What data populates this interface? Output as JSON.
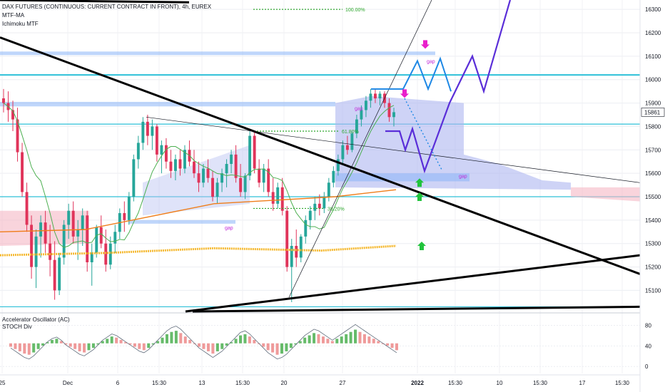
{
  "chart_data": [
    {
      "type": "candlestick",
      "title": "DAX FUTURES (CONTINUOUS: CURRENT CONTRACT IN FRONT), 4h, EUREX",
      "indicators": [
        "MTF-MA",
        "Ichimoku MTF"
      ],
      "last_price": "15861",
      "y_ticks": [
        "16300",
        "16200",
        "16100",
        "16000",
        "15900",
        "15800",
        "15700",
        "15600",
        "15500",
        "15400",
        "15300",
        "15200",
        "15100"
      ],
      "ylim": [
        15010,
        16340
      ],
      "x_ticks": [
        "25",
        "Dec",
        "6",
        "15:30",
        "13",
        "15:30",
        "20",
        "27",
        "2022",
        "15:30",
        "10",
        "15:30",
        "17",
        "15:30"
      ],
      "bold_x_ticks": [
        "2022"
      ],
      "annotations": [
        "100.00%",
        "61.80%",
        "38.20%",
        "gap",
        "gap",
        "gap",
        "gap"
      ],
      "candles": [
        {
          "o": 15920,
          "h": 15960,
          "l": 15860,
          "c": 15900
        },
        {
          "o": 15900,
          "h": 15950,
          "l": 15820,
          "c": 15870
        },
        {
          "o": 15870,
          "h": 15910,
          "l": 15780,
          "c": 15830
        },
        {
          "o": 15830,
          "h": 15880,
          "l": 15650,
          "c": 15690
        },
        {
          "o": 15690,
          "h": 15730,
          "l": 15500,
          "c": 15520
        },
        {
          "o": 15520,
          "h": 15560,
          "l": 15350,
          "c": 15380
        },
        {
          "o": 15380,
          "h": 15420,
          "l": 15150,
          "c": 15200
        },
        {
          "o": 15200,
          "h": 15360,
          "l": 15110,
          "c": 15330
        },
        {
          "o": 15330,
          "h": 15420,
          "l": 15240,
          "c": 15390
        },
        {
          "o": 15390,
          "h": 15440,
          "l": 15260,
          "c": 15300
        },
        {
          "o": 15300,
          "h": 15380,
          "l": 15160,
          "c": 15230
        },
        {
          "o": 15230,
          "h": 15310,
          "l": 15060,
          "c": 15100
        },
        {
          "o": 15100,
          "h": 15260,
          "l": 15080,
          "c": 15240
        },
        {
          "o": 15240,
          "h": 15400,
          "l": 15210,
          "c": 15380
        },
        {
          "o": 15380,
          "h": 15470,
          "l": 15320,
          "c": 15440
        },
        {
          "o": 15440,
          "h": 15480,
          "l": 15300,
          "c": 15330
        },
        {
          "o": 15330,
          "h": 15400,
          "l": 15230,
          "c": 15360
        },
        {
          "o": 15360,
          "h": 15450,
          "l": 15290,
          "c": 15420
        },
        {
          "o": 15420,
          "h": 15440,
          "l": 15180,
          "c": 15220
        },
        {
          "o": 15220,
          "h": 15300,
          "l": 15120,
          "c": 15260
        },
        {
          "o": 15260,
          "h": 15380,
          "l": 15240,
          "c": 15370
        },
        {
          "o": 15370,
          "h": 15420,
          "l": 15280,
          "c": 15300
        },
        {
          "o": 15300,
          "h": 15360,
          "l": 15180,
          "c": 15210
        },
        {
          "o": 15210,
          "h": 15330,
          "l": 15190,
          "c": 15300
        },
        {
          "o": 15300,
          "h": 15380,
          "l": 15260,
          "c": 15350
        },
        {
          "o": 15350,
          "h": 15450,
          "l": 15320,
          "c": 15430
        },
        {
          "o": 15430,
          "h": 15480,
          "l": 15350,
          "c": 15400
        },
        {
          "o": 15400,
          "h": 15520,
          "l": 15380,
          "c": 15500
        },
        {
          "o": 15500,
          "h": 15680,
          "l": 15480,
          "c": 15660
        },
        {
          "o": 15660,
          "h": 15760,
          "l": 15620,
          "c": 15730
        },
        {
          "o": 15730,
          "h": 15840,
          "l": 15700,
          "c": 15820
        },
        {
          "o": 15820,
          "h": 15850,
          "l": 15720,
          "c": 15760
        },
        {
          "o": 15760,
          "h": 15830,
          "l": 15700,
          "c": 15800
        },
        {
          "o": 15800,
          "h": 15810,
          "l": 15650,
          "c": 15680
        },
        {
          "o": 15680,
          "h": 15740,
          "l": 15600,
          "c": 15720
        },
        {
          "o": 15720,
          "h": 15750,
          "l": 15620,
          "c": 15650
        },
        {
          "o": 15650,
          "h": 15700,
          "l": 15580,
          "c": 15610
        },
        {
          "o": 15610,
          "h": 15680,
          "l": 15570,
          "c": 15660
        },
        {
          "o": 15660,
          "h": 15700,
          "l": 15590,
          "c": 15620
        },
        {
          "o": 15620,
          "h": 15720,
          "l": 15600,
          "c": 15700
        },
        {
          "o": 15700,
          "h": 15740,
          "l": 15630,
          "c": 15650
        },
        {
          "o": 15650,
          "h": 15700,
          "l": 15580,
          "c": 15600
        },
        {
          "o": 15600,
          "h": 15650,
          "l": 15520,
          "c": 15560
        },
        {
          "o": 15560,
          "h": 15640,
          "l": 15540,
          "c": 15620
        },
        {
          "o": 15620,
          "h": 15660,
          "l": 15560,
          "c": 15580
        },
        {
          "o": 15580,
          "h": 15610,
          "l": 15480,
          "c": 15500
        },
        {
          "o": 15500,
          "h": 15580,
          "l": 15470,
          "c": 15560
        },
        {
          "o": 15560,
          "h": 15620,
          "l": 15520,
          "c": 15600
        },
        {
          "o": 15600,
          "h": 15660,
          "l": 15540,
          "c": 15640
        },
        {
          "o": 15640,
          "h": 15700,
          "l": 15600,
          "c": 15680
        },
        {
          "o": 15680,
          "h": 15720,
          "l": 15560,
          "c": 15580
        },
        {
          "o": 15580,
          "h": 15640,
          "l": 15500,
          "c": 15520
        },
        {
          "o": 15520,
          "h": 15600,
          "l": 15490,
          "c": 15590
        },
        {
          "o": 15590,
          "h": 15780,
          "l": 15570,
          "c": 15760
        },
        {
          "o": 15760,
          "h": 15780,
          "l": 15600,
          "c": 15620
        },
        {
          "o": 15620,
          "h": 15660,
          "l": 15540,
          "c": 15560
        },
        {
          "o": 15560,
          "h": 15640,
          "l": 15520,
          "c": 15620
        },
        {
          "o": 15620,
          "h": 15660,
          "l": 15500,
          "c": 15520
        },
        {
          "o": 15520,
          "h": 15580,
          "l": 15440,
          "c": 15470
        },
        {
          "o": 15470,
          "h": 15560,
          "l": 15450,
          "c": 15540
        },
        {
          "o": 15540,
          "h": 15580,
          "l": 15420,
          "c": 15440
        },
        {
          "o": 15440,
          "h": 15460,
          "l": 15180,
          "c": 15200
        },
        {
          "o": 15200,
          "h": 15320,
          "l": 15050,
          "c": 15290
        },
        {
          "o": 15290,
          "h": 15360,
          "l": 15200,
          "c": 15240
        },
        {
          "o": 15240,
          "h": 15340,
          "l": 15220,
          "c": 15330
        },
        {
          "o": 15330,
          "h": 15420,
          "l": 15300,
          "c": 15400
        },
        {
          "o": 15400,
          "h": 15460,
          "l": 15360,
          "c": 15440
        },
        {
          "o": 15440,
          "h": 15500,
          "l": 15400,
          "c": 15470
        },
        {
          "o": 15470,
          "h": 15510,
          "l": 15420,
          "c": 15450
        },
        {
          "o": 15450,
          "h": 15520,
          "l": 15430,
          "c": 15500
        },
        {
          "o": 15500,
          "h": 15580,
          "l": 15480,
          "c": 15560
        },
        {
          "o": 15560,
          "h": 15630,
          "l": 15540,
          "c": 15610
        },
        {
          "o": 15610,
          "h": 15680,
          "l": 15590,
          "c": 15660
        },
        {
          "o": 15660,
          "h": 15740,
          "l": 15640,
          "c": 15720
        },
        {
          "o": 15720,
          "h": 15760,
          "l": 15680,
          "c": 15700
        },
        {
          "o": 15700,
          "h": 15780,
          "l": 15690,
          "c": 15770
        },
        {
          "o": 15770,
          "h": 15850,
          "l": 15750,
          "c": 15830
        },
        {
          "o": 15830,
          "h": 15890,
          "l": 15800,
          "c": 15870
        },
        {
          "o": 15870,
          "h": 15930,
          "l": 15840,
          "c": 15910
        },
        {
          "o": 15910,
          "h": 15960,
          "l": 15880,
          "c": 15940
        },
        {
          "o": 15940,
          "h": 15960,
          "l": 15900,
          "c": 15920
        },
        {
          "o": 15920,
          "h": 15950,
          "l": 15890,
          "c": 15940
        },
        {
          "o": 15940,
          "h": 15950,
          "l": 15880,
          "c": 15900
        },
        {
          "o": 15900,
          "h": 15920,
          "l": 15820,
          "c": 15840
        },
        {
          "o": 15840,
          "h": 15880,
          "l": 15800,
          "c": 15861
        }
      ]
    },
    {
      "type": "bar",
      "title": "Accelerator Oscillator (AC)",
      "indicators": [
        "STOCH Div"
      ],
      "y_ticks": [
        "80",
        "40",
        "0"
      ],
      "ylim": [
        -8,
        100
      ],
      "values": [
        -6,
        -10,
        -14,
        -18,
        -20,
        -16,
        -10,
        -4,
        2,
        6,
        8,
        4,
        -2,
        -6,
        -10,
        -14,
        -16,
        -12,
        -8,
        -2,
        4,
        8,
        12,
        10,
        6,
        2,
        -2,
        -6,
        -10,
        -12,
        -8,
        -2,
        4,
        10,
        16,
        20,
        22,
        18,
        12,
        6,
        0,
        -6,
        -10,
        -14,
        -18,
        -14,
        -10,
        -4,
        2,
        8,
        14,
        16,
        12,
        6,
        0,
        -6,
        -12,
        -16,
        -20,
        -18,
        -14,
        -8,
        -2,
        4,
        10,
        14,
        18,
        16,
        12,
        8,
        4,
        8,
        12,
        16,
        20,
        24,
        20,
        16,
        12,
        8,
        4,
        0,
        -4,
        -8,
        -12
      ]
    }
  ]
}
